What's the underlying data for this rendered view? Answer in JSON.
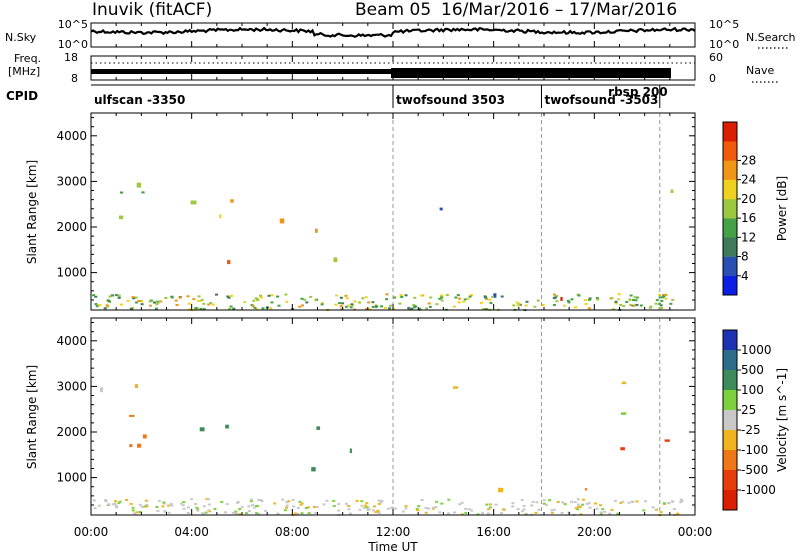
{
  "header": {
    "station": "Inuvik (fitACF)",
    "beam": "Beam 05",
    "date_range": "16/Mar/2016 – 17/Mar/2016"
  },
  "strip_panels": {
    "nsky": {
      "label": "N.Sky",
      "ticks_left": [
        "10^5",
        "10^0"
      ],
      "ticks_right": [
        "10^5",
        "10^0"
      ],
      "right_label": "N.Search"
    },
    "freq": {
      "label_line1": "Freq.",
      "label_line2": "[MHz]",
      "ticks_left": [
        "18",
        "8"
      ],
      "ticks_right": [
        "60",
        "0"
      ],
      "right_label": "Nave"
    },
    "cpid": {
      "label": "CPID",
      "segments": [
        {
          "label": "ulfscan -3350",
          "start": 0,
          "end": 12.0
        },
        {
          "label": "twofsound 3503",
          "start": 12.0,
          "end": 17.9
        },
        {
          "label": "twofsound -3503",
          "start": 17.9,
          "end": 22.6
        },
        {
          "label": "rbsp 200",
          "start": 20.6,
          "end": 22.6
        }
      ]
    }
  },
  "axes": {
    "x_label": "Time UT",
    "x_ticks": [
      "00:00",
      "04:00",
      "08:00",
      "12:00",
      "16:00",
      "20:00",
      "00:00"
    ],
    "y_label": "Slant Range [km]",
    "y_ticks": [
      "1000",
      "2000",
      "3000",
      "4000"
    ]
  },
  "chart_data": [
    {
      "type": "heatmap",
      "title": "",
      "xlabel": "Time UT",
      "ylabel": "Slant Range [km]",
      "xlim": [
        0,
        24
      ],
      "ylim": [
        180,
        4500
      ],
      "colorbar": {
        "label": "Power [dB]",
        "ticks": [
          "4",
          "8",
          "12",
          "16",
          "20",
          "24",
          "28"
        ],
        "colors": [
          "#0a1ee6",
          "#2850b4",
          "#3c7a5a",
          "#46a046",
          "#9bc83c",
          "#f0d21e",
          "#f09614",
          "#f05a0a",
          "#dc1e00"
        ]
      },
      "regions": [
        {
          "t0": 0.1,
          "t1": 1.6,
          "r0": 1200,
          "r1": 3400,
          "value": 14
        },
        {
          "t0": 1.5,
          "t1": 4.6,
          "r0": 1500,
          "r1": 3000,
          "value": 12
        },
        {
          "t0": 4.2,
          "t1": 6.0,
          "r0": 1100,
          "r1": 2400,
          "value": 22
        },
        {
          "t0": 5.4,
          "t1": 6.5,
          "r0": 2500,
          "r1": 3200,
          "value": 18
        },
        {
          "t0": 7.4,
          "t1": 9.3,
          "r0": 800,
          "r1": 2300,
          "value": 26
        },
        {
          "t0": 7.7,
          "t1": 8.3,
          "r0": 2600,
          "r1": 3200,
          "value": 20
        },
        {
          "t0": 9.6,
          "t1": 10.2,
          "r0": 1300,
          "r1": 2600,
          "value": 12
        },
        {
          "t0": 10.1,
          "t1": 11.9,
          "r0": 200,
          "r1": 600,
          "value": 22
        },
        {
          "t0": 13.0,
          "t1": 14.5,
          "r0": 1700,
          "r1": 2800,
          "value": 10
        },
        {
          "t0": 15.8,
          "t1": 17.8,
          "r0": 400,
          "r1": 1200,
          "value": 10
        },
        {
          "t0": 18.4,
          "t1": 20.8,
          "r0": 250,
          "r1": 700,
          "value": 26
        },
        {
          "t0": 20.0,
          "t1": 22.0,
          "r0": 250,
          "r1": 700,
          "value": 22
        },
        {
          "t0": 21.7,
          "t1": 23.6,
          "r0": 2000,
          "r1": 3000,
          "value": 14
        }
      ]
    },
    {
      "type": "heatmap",
      "title": "",
      "xlabel": "Time UT",
      "ylabel": "Slant Range [km]",
      "xlim": [
        0,
        24
      ],
      "ylim": [
        180,
        4500
      ],
      "colorbar": {
        "label": "Velocity [m s^-1]",
        "ticks": [
          "1000",
          "500",
          "100",
          "25",
          "-25",
          "-100",
          "-500",
          "-1000"
        ],
        "colors": [
          "#1e32b4",
          "#2a6e8c",
          "#3c8c5a",
          "#7cd23c",
          "#c8c8c8",
          "#f0b41e",
          "#f07814",
          "#e63c0a",
          "#dc1e00"
        ]
      },
      "regions": [
        {
          "t0": 0.1,
          "t1": 1.6,
          "r0": 900,
          "r1": 2100,
          "value": -300
        },
        {
          "t0": 0.3,
          "t1": 1.5,
          "r0": 2600,
          "r1": 3300,
          "value": 0
        },
        {
          "t0": 1.5,
          "t1": 4.6,
          "r0": 1500,
          "r1": 3200,
          "value": -150
        },
        {
          "t0": 4.2,
          "t1": 6.0,
          "r0": 900,
          "r1": 2200,
          "value": 300
        },
        {
          "t0": 7.4,
          "t1": 9.3,
          "r0": 800,
          "r1": 2200,
          "value": 300
        },
        {
          "t0": 9.6,
          "t1": 11.0,
          "r0": 1400,
          "r1": 2500,
          "value": 300
        },
        {
          "t0": 13.0,
          "t1": 14.5,
          "r0": 2600,
          "r1": 3200,
          "value": 0
        },
        {
          "t0": 15.8,
          "t1": 17.8,
          "r0": 500,
          "r1": 1000,
          "value": -150
        },
        {
          "t0": 18.4,
          "t1": 21.5,
          "r0": 300,
          "r1": 900,
          "value": -100
        },
        {
          "t0": 21.0,
          "t1": 23.6,
          "r0": 2400,
          "r1": 3300,
          "value": 0
        },
        {
          "t0": 21.0,
          "t1": 23.0,
          "r0": 900,
          "r1": 2100,
          "value": -400
        }
      ]
    }
  ]
}
